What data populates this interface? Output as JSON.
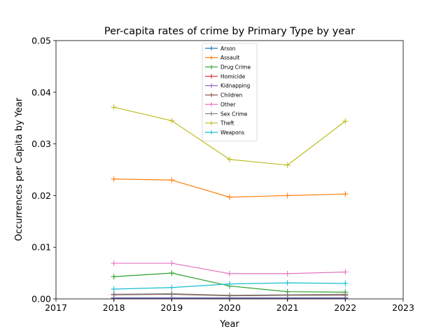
{
  "chart_data": {
    "type": "line",
    "title": "Per-capita rates of crime by Primary Type by year",
    "xlabel": "Year",
    "ylabel": "Occurrences per Capita by Year",
    "xlim": [
      2017,
      2023
    ],
    "ylim": [
      0,
      0.05
    ],
    "xticks": [
      "2017",
      "2018",
      "2019",
      "2020",
      "2021",
      "2022",
      "2023"
    ],
    "yticks": [
      "0.00",
      "0.01",
      "0.02",
      "0.03",
      "0.04",
      "0.05"
    ],
    "grid": false,
    "legend_position": "top-center",
    "x": [
      2018,
      2019,
      2020,
      2021,
      2022
    ],
    "series": [
      {
        "name": "Arson",
        "color": "#1f77b4",
        "values": [
          0.0002,
          0.0002,
          0.0002,
          0.0002,
          0.0002
        ]
      },
      {
        "name": "Assault",
        "color": "#ff7f0e",
        "values": [
          0.0232,
          0.023,
          0.0197,
          0.02,
          0.0203
        ]
      },
      {
        "name": "Drug Crime",
        "color": "#2ca02c",
        "values": [
          0.0043,
          0.005,
          0.0025,
          0.0014,
          0.0013
        ]
      },
      {
        "name": "Homicide",
        "color": "#d62728",
        "values": [
          0.0001,
          0.0001,
          0.0001,
          0.0001,
          0.0001
        ]
      },
      {
        "name": "Kidnapping",
        "color": "#9467bd",
        "values": [
          0.0001,
          0.0001,
          0.0001,
          0.0001,
          0.0001
        ]
      },
      {
        "name": "Children",
        "color": "#8c564b",
        "values": [
          0.0008,
          0.0009,
          0.0006,
          0.0007,
          0.0007
        ]
      },
      {
        "name": "Other",
        "color": "#e377c2",
        "values": [
          0.0069,
          0.0069,
          0.0049,
          0.0049,
          0.0052
        ]
      },
      {
        "name": "Sex Crime",
        "color": "#7f7f7f",
        "values": [
          0.0009,
          0.001,
          0.0007,
          0.0008,
          0.0009
        ]
      },
      {
        "name": "Theft",
        "color": "#bcbd22",
        "values": [
          0.0371,
          0.0345,
          0.027,
          0.0259,
          0.0344
        ]
      },
      {
        "name": "Weapons",
        "color": "#17becf",
        "values": [
          0.0019,
          0.0022,
          0.0029,
          0.0031,
          0.003
        ]
      }
    ]
  }
}
